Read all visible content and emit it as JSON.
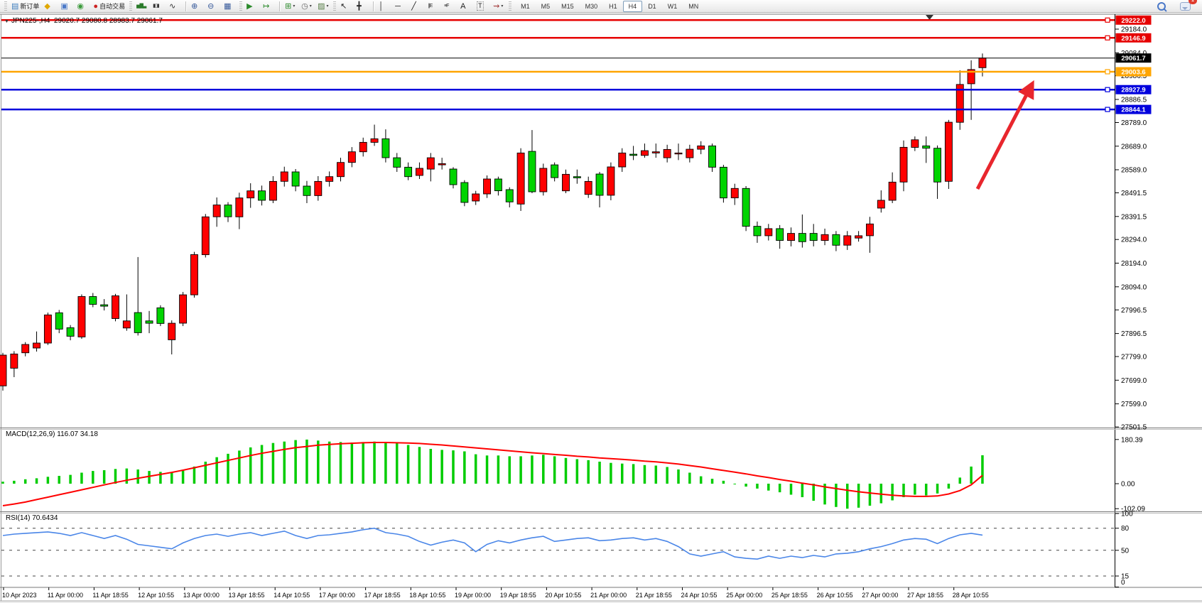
{
  "toolbar": {
    "new_order_label": "新订单",
    "auto_trading_label": "自动交易",
    "notification_count": "1",
    "timeframes": [
      "M1",
      "M5",
      "M15",
      "M30",
      "H1",
      "H4",
      "D1",
      "W1",
      "MN"
    ],
    "active_timeframe": "H4",
    "items": [
      {
        "type": "grip"
      },
      {
        "type": "button",
        "name": "new-order-button",
        "glyph": "▤",
        "color": "#3f7fbf",
        "label": "新订单"
      },
      {
        "type": "button",
        "name": "market-watch-icon",
        "glyph": "◆",
        "color": "#e0a800"
      },
      {
        "type": "button",
        "name": "data-window-icon",
        "glyph": "▣",
        "color": "#4a78c8"
      },
      {
        "type": "button",
        "name": "navigator-icon",
        "glyph": "◉",
        "color": "#3a9a3a"
      },
      {
        "type": "button",
        "name": "auto-trading-button",
        "glyph": "●",
        "color": "#cc2222",
        "label": "自动交易"
      },
      {
        "type": "grip"
      },
      {
        "type": "button",
        "name": "bar-chart-icon",
        "glyph": "▅▇▃",
        "color": "#2a7a2a",
        "small": true
      },
      {
        "type": "button",
        "name": "candlestick-chart-icon",
        "glyph": "▮▯▮",
        "color": "#333333",
        "small": true
      },
      {
        "type": "button",
        "name": "line-chart-icon",
        "glyph": "∿",
        "color": "#333333"
      },
      {
        "type": "sep"
      },
      {
        "type": "button",
        "name": "zoom-in-icon",
        "glyph": "⊕",
        "color": "#35589a"
      },
      {
        "type": "button",
        "name": "zoom-out-icon",
        "glyph": "⊖",
        "color": "#35589a"
      },
      {
        "type": "button",
        "name": "tile-windows-icon",
        "glyph": "▦",
        "color": "#35589a"
      },
      {
        "type": "grip"
      },
      {
        "type": "button",
        "name": "auto-scroll-icon",
        "glyph": "▶",
        "color": "#2a8a2a"
      },
      {
        "type": "button",
        "name": "chart-shift-icon",
        "glyph": "↦",
        "color": "#2a8a2a"
      },
      {
        "type": "sep"
      },
      {
        "type": "button",
        "name": "new-chart-icon",
        "glyph": "⊞",
        "color": "#2a8a2a",
        "caret": true
      },
      {
        "type": "button",
        "name": "periods-icon",
        "glyph": "◷",
        "color": "#666666",
        "caret": true
      },
      {
        "type": "button",
        "name": "templates-icon",
        "glyph": "▨",
        "color": "#567d46",
        "caret": true
      },
      {
        "type": "grip"
      },
      {
        "type": "button",
        "name": "cursor-icon",
        "glyph": "↖",
        "color": "#222222"
      },
      {
        "type": "button",
        "name": "crosshair-icon",
        "glyph": "╋",
        "color": "#222222"
      },
      {
        "type": "sep"
      },
      {
        "type": "button",
        "name": "vertical-line-icon",
        "glyph": "│",
        "color": "#222222"
      },
      {
        "type": "button",
        "name": "horizontal-line-icon",
        "glyph": "─",
        "color": "#222222"
      },
      {
        "type": "button",
        "name": "trendline-icon",
        "glyph": "╱",
        "color": "#222222"
      },
      {
        "type": "button",
        "name": "equidistant-channel-icon",
        "glyph": "∥E",
        "color": "#222222",
        "small": true
      },
      {
        "type": "button",
        "name": "fibonacci-icon",
        "glyph": "≡F",
        "color": "#222222",
        "small": true
      },
      {
        "type": "button",
        "name": "text-icon",
        "glyph": "A",
        "color": "#222222"
      },
      {
        "type": "button",
        "name": "text-label-icon",
        "glyph": "T",
        "color": "#222222",
        "boxed": true
      },
      {
        "type": "button",
        "name": "arrows-icon",
        "glyph": "⇝",
        "color": "#a03333",
        "caret": true
      },
      {
        "type": "grip"
      }
    ]
  },
  "chart": {
    "dropdown_glyph": "▼",
    "title_symbol": "JPN225-,H4",
    "title_ohlc": "29020.7 29080.8 28983.7 29061.7",
    "macd_display": "MACD(12,26,9) 116.07 34.18",
    "rsi_display": "RSI(14) 70.6434"
  },
  "chart_data": {
    "type": "candlestick",
    "symbol": "JPN225-",
    "timeframe": "H4",
    "current_bar": {
      "open": 29020.7,
      "high": 29080.8,
      "low": 28983.7,
      "close": 29061.7
    },
    "colors": {
      "bull": "#ff0000",
      "bear": "#00d400",
      "wick": "#000000",
      "macd_hist": "#00cc00",
      "macd_signal": "#ff0000",
      "rsi_line": "#4a86e8",
      "arrow": "#e8262d",
      "level_red": "#e60000",
      "level_orange": "#ffa500",
      "level_blue": "#0000dd",
      "current_price": "#000000"
    },
    "price_axis_ticks": [
      "29184.0",
      "29084.0",
      "28986.5",
      "28886.5",
      "28789.0",
      "28689.0",
      "28589.0",
      "28491.5",
      "28391.5",
      "28294.0",
      "28194.0",
      "28094.0",
      "27996.5",
      "27896.5",
      "27799.0",
      "27699.0",
      "27599.0",
      "27501.5"
    ],
    "levels": [
      {
        "label": "29222.0",
        "value": 29222.0,
        "color": "#e60000",
        "width": 2.5
      },
      {
        "label": "29146.9",
        "value": 29146.9,
        "color": "#e60000",
        "width": 2.5
      },
      {
        "label": "29061.7",
        "value": 29061.7,
        "color": "#000000",
        "width": 1,
        "current": true
      },
      {
        "label": "29003.6",
        "value": 29003.6,
        "color": "#ffa500",
        "width": 2.5
      },
      {
        "label": "28927.9",
        "value": 28927.9,
        "color": "#0000dd",
        "width": 2.5
      },
      {
        "label": "28844.1",
        "value": 28844.1,
        "color": "#0000dd",
        "width": 2.5
      }
    ],
    "candles": [
      [
        27675,
        27815,
        27655,
        27805
      ],
      [
        27750,
        27822,
        27712,
        27810
      ],
      [
        27815,
        27860,
        27800,
        27850
      ],
      [
        27835,
        27905,
        27820,
        27856
      ],
      [
        27856,
        27985,
        27848,
        27975
      ],
      [
        27984,
        27996,
        27898,
        27915
      ],
      [
        27921,
        27932,
        27868,
        27885
      ],
      [
        27882,
        28062,
        27874,
        28053
      ],
      [
        28053,
        28068,
        28008,
        28020
      ],
      [
        28018,
        28042,
        27994,
        28012
      ],
      [
        27960,
        28064,
        27948,
        28056
      ],
      [
        27920,
        28062,
        27908,
        27950
      ],
      [
        27985,
        28220,
        27888,
        27900
      ],
      [
        27950,
        27992,
        27898,
        27940
      ],
      [
        28005,
        28016,
        27928,
        27939
      ],
      [
        27870,
        27952,
        27808,
        27940
      ],
      [
        27940,
        28072,
        27928,
        28060
      ],
      [
        28060,
        28242,
        28048,
        28230
      ],
      [
        28230,
        28402,
        28218,
        28390
      ],
      [
        28390,
        28472,
        28348,
        28440
      ],
      [
        28440,
        28452,
        28368,
        28390
      ],
      [
        28390,
        28492,
        28338,
        28470
      ],
      [
        28470,
        28532,
        28428,
        28500
      ],
      [
        28500,
        28522,
        28438,
        28460
      ],
      [
        28460,
        28562,
        28448,
        28540
      ],
      [
        28540,
        28602,
        28518,
        28580
      ],
      [
        28580,
        28592,
        28498,
        28520
      ],
      [
        28520,
        28542,
        28448,
        28480
      ],
      [
        28480,
        28562,
        28458,
        28540
      ],
      [
        28540,
        28582,
        28518,
        28560
      ],
      [
        28560,
        28640,
        28540,
        28620
      ],
      [
        28620,
        28685,
        28600,
        28665
      ],
      [
        28665,
        28725,
        28645,
        28705
      ],
      [
        28705,
        28780,
        28690,
        28720
      ],
      [
        28720,
        28760,
        28620,
        28640
      ],
      [
        28640,
        28660,
        28580,
        28600
      ],
      [
        28600,
        28620,
        28545,
        28560
      ],
      [
        28565,
        28620,
        28550,
        28595
      ],
      [
        28592,
        28660,
        28540,
        28640
      ],
      [
        28610,
        28640,
        28590,
        28615
      ],
      [
        28592,
        28600,
        28510,
        28526
      ],
      [
        28535,
        28545,
        28435,
        28451
      ],
      [
        28457,
        28500,
        28440,
        28487
      ],
      [
        28487,
        28565,
        28470,
        28550
      ],
      [
        28550,
        28560,
        28480,
        28500
      ],
      [
        28505,
        28515,
        28430,
        28453
      ],
      [
        28444,
        28680,
        28415,
        28660
      ],
      [
        28667,
        28757,
        28490,
        28496
      ],
      [
        28496,
        28615,
        28480,
        28595
      ],
      [
        28610,
        28620,
        28540,
        28556
      ],
      [
        28500,
        28590,
        28490,
        28570
      ],
      [
        28560,
        28590,
        28530,
        28555
      ],
      [
        28485,
        28560,
        28470,
        28540
      ],
      [
        28571,
        28580,
        28430,
        28481
      ],
      [
        28481,
        28620,
        28460,
        28601
      ],
      [
        28601,
        28680,
        28580,
        28660
      ],
      [
        28655,
        28690,
        28630,
        28650
      ],
      [
        28650,
        28700,
        28640,
        28670
      ],
      [
        28660,
        28700,
        28640,
        28665
      ],
      [
        28640,
        28695,
        28620,
        28675
      ],
      [
        28660,
        28700,
        28630,
        28660
      ],
      [
        28640,
        28695,
        28620,
        28676
      ],
      [
        28676,
        28710,
        28655,
        28690
      ],
      [
        28690,
        28700,
        28580,
        28600
      ],
      [
        28600,
        28610,
        28450,
        28470
      ],
      [
        28470,
        28530,
        28440,
        28510
      ],
      [
        28510,
        28520,
        28330,
        28350
      ],
      [
        28350,
        28370,
        28280,
        28310
      ],
      [
        28310,
        28360,
        28290,
        28340
      ],
      [
        28340,
        28355,
        28255,
        28290
      ],
      [
        28290,
        28345,
        28265,
        28320
      ],
      [
        28320,
        28400,
        28260,
        28285
      ],
      [
        28320,
        28360,
        28265,
        28290
      ],
      [
        28290,
        28340,
        28270,
        28315
      ],
      [
        28315,
        28330,
        28245,
        28270
      ],
      [
        28270,
        28330,
        28250,
        28310
      ],
      [
        28300,
        28330,
        28285,
        28310
      ],
      [
        28310,
        28390,
        28238,
        28360
      ],
      [
        28427,
        28502,
        28408,
        28460
      ],
      [
        28460,
        28578,
        28448,
        28537
      ],
      [
        28537,
        28713,
        28498,
        28684
      ],
      [
        28684,
        28730,
        28668,
        28716
      ],
      [
        28690,
        28730,
        28618,
        28680
      ],
      [
        28680,
        28692,
        28466,
        28537
      ],
      [
        28540,
        28800,
        28508,
        28790
      ],
      [
        28790,
        29010,
        28758,
        28950
      ],
      [
        28953,
        29052,
        28800,
        29013
      ],
      [
        29020.7,
        29080.8,
        28983.7,
        29061.7
      ]
    ],
    "x_labels": [
      "10 Apr 2023",
      "11 Apr 00:00",
      "11 Apr 18:55",
      "12 Apr 10:55",
      "13 Apr 00:00",
      "13 Apr 18:55",
      "14 Apr 10:55",
      "17 Apr 00:00",
      "17 Apr 18:55",
      "18 Apr 10:55",
      "19 Apr 00:00",
      "19 Apr 18:55",
      "20 Apr 10:55",
      "21 Apr 00:00",
      "21 Apr 18:55",
      "24 Apr 10:55",
      "25 Apr 00:00",
      "25 Apr 18:55",
      "26 Apr 10:55",
      "27 Apr 00:00",
      "27 Apr 18:55",
      "28 Apr 10:55"
    ],
    "macd": {
      "label": "MACD(12,26,9)",
      "main_value": 116.07,
      "signal_value": 34.18,
      "axis_ticks": [
        {
          "label": "180.39",
          "v": 180.39
        },
        {
          "label": "0.00",
          "v": 0
        },
        {
          "label": "-102.09",
          "v": -102.09
        }
      ],
      "histogram": [
        8,
        12,
        18,
        22,
        28,
        32,
        36,
        45,
        52,
        55,
        60,
        62,
        58,
        52,
        48,
        45,
        55,
        70,
        90,
        108,
        122,
        135,
        148,
        158,
        166,
        172,
        178,
        180,
        176,
        172,
        170,
        168,
        170,
        172,
        170,
        165,
        158,
        150,
        142,
        138,
        136,
        132,
        120,
        115,
        115,
        112,
        112,
        115,
        118,
        112,
        105,
        100,
        96,
        90,
        85,
        82,
        80,
        76,
        74,
        68,
        58,
        45,
        30,
        20,
        12,
        -2,
        -12,
        -20,
        -28,
        -35,
        -45,
        -55,
        -70,
        -85,
        -95,
        -102,
        -98,
        -90,
        -80,
        -68,
        -55,
        -45,
        -48,
        -40,
        -20,
        25,
        70,
        116
      ],
      "signal": [
        -90,
        -83,
        -75,
        -65,
        -55,
        -45,
        -35,
        -25,
        -15,
        -5,
        5,
        14,
        22,
        30,
        38,
        46,
        55,
        65,
        75,
        85,
        95,
        105,
        115,
        124,
        132,
        140,
        147,
        152,
        157,
        160,
        163,
        165,
        167,
        168,
        168,
        167,
        166,
        164,
        161,
        158,
        154,
        150,
        146,
        142,
        138,
        134,
        130,
        126,
        123,
        119,
        116,
        112,
        109,
        105,
        102,
        99,
        96,
        92,
        89,
        85,
        80,
        74,
        68,
        61,
        54,
        47,
        40,
        32,
        25,
        17,
        10,
        2,
        -5,
        -13,
        -20,
        -27,
        -33,
        -38,
        -43,
        -47,
        -50,
        -52,
        -52,
        -50,
        -42,
        -28,
        -5,
        34
      ]
    },
    "rsi": {
      "label": "RSI(14)",
      "value": 70.6434,
      "axis_ticks": [
        {
          "label": "100",
          "v": 100
        },
        {
          "label": "80",
          "v": 80,
          "dashed": true
        },
        {
          "label": "50",
          "v": 50,
          "dashed": true
        },
        {
          "label": "15",
          "v": 15,
          "dashed": true
        },
        {
          "label": "0",
          "v": 0
        }
      ],
      "values": [
        70,
        72,
        73,
        74,
        75,
        73,
        70,
        74,
        70,
        66,
        70,
        65,
        58,
        56,
        54,
        52,
        60,
        66,
        70,
        72,
        69,
        72,
        74,
        70,
        73,
        76,
        70,
        66,
        70,
        71,
        73,
        75,
        78,
        80,
        74,
        72,
        69,
        62,
        57,
        61,
        64,
        60,
        48,
        58,
        63,
        60,
        64,
        67,
        69,
        62,
        64,
        66,
        67,
        63,
        64,
        66,
        67,
        64,
        66,
        62,
        55,
        45,
        42,
        45,
        48,
        41,
        39,
        38,
        42,
        39,
        42,
        40,
        43,
        41,
        45,
        46,
        48,
        52,
        55,
        59,
        64,
        66,
        65,
        59,
        66,
        71,
        73,
        70.6
      ]
    },
    "arrow": {
      "from": [
        1376,
        266
      ],
      "to": [
        1452,
        120
      ]
    }
  }
}
